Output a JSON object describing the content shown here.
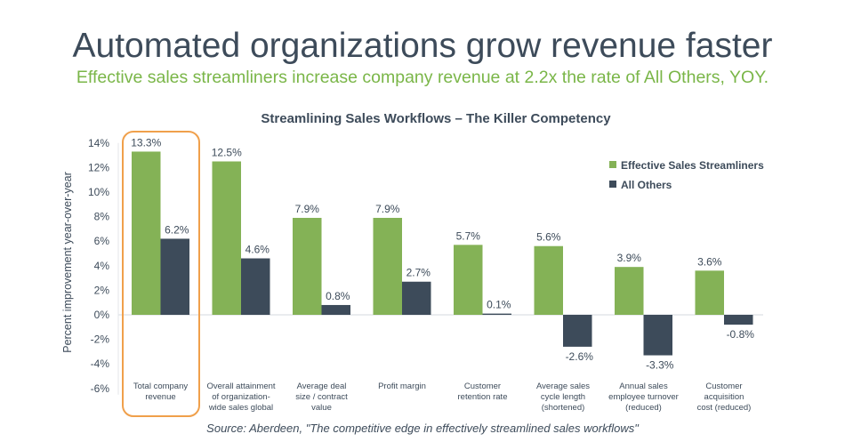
{
  "title": "Automated organizations grow revenue faster",
  "subtitle": "Effective sales streamliners increase company revenue at 2.2x the rate of All Others, YOY.",
  "source": "Source: Aberdeen, \"The competitive edge in effectively streamlined sales workflows\"",
  "colors": {
    "green": "#84b256",
    "dark": "#3d4b5a",
    "highlight": "#f0a04b"
  },
  "chart_data": {
    "type": "bar",
    "title": "Streamlining Sales Workflows – The Killer Competency",
    "ylabel": "Percent improvement year-over-year",
    "xlabel": "",
    "ylim": [
      -6,
      14
    ],
    "yticks": [
      "14%",
      "12%",
      "10%",
      "8%",
      "6%",
      "4%",
      "2%",
      "0%",
      "-2%",
      "-4%",
      "-6%"
    ],
    "yticks_values": [
      14,
      12,
      10,
      8,
      6,
      4,
      2,
      0,
      -2,
      -4,
      -6
    ],
    "grid": false,
    "legend_position": "top-right",
    "highlighted_category": "Total company revenue",
    "categories": [
      [
        "Total company",
        "revenue"
      ],
      [
        "Overall attainment",
        "of organization-",
        "wide sales global"
      ],
      [
        "Average deal",
        "size / contract",
        "value"
      ],
      [
        "Profit margin"
      ],
      [
        "Customer",
        "retention rate"
      ],
      [
        "Average sales",
        "cycle length",
        "(shortened)"
      ],
      [
        "Annual sales",
        "employee turnover",
        "(reduced)"
      ],
      [
        "Customer",
        "acquisition",
        "cost (reduced)"
      ]
    ],
    "series": [
      {
        "name": "Effective Sales Streamliners",
        "values": [
          13.3,
          12.5,
          7.9,
          7.9,
          5.7,
          5.6,
          3.9,
          3.6
        ],
        "labels": [
          "13.3%",
          "12.5%",
          "7.9%",
          "7.9%",
          "5.7%",
          "5.6%",
          "3.9%",
          "3.6%"
        ]
      },
      {
        "name": "All Others",
        "values": [
          6.2,
          4.6,
          0.8,
          2.7,
          0.1,
          -2.6,
          -3.3,
          -0.8
        ],
        "labels": [
          "6.2%",
          "4.6%",
          "0.8%",
          "2.7%",
          "0.1%",
          "-2.6%",
          "-3.3%",
          "-0.8%"
        ]
      }
    ]
  }
}
